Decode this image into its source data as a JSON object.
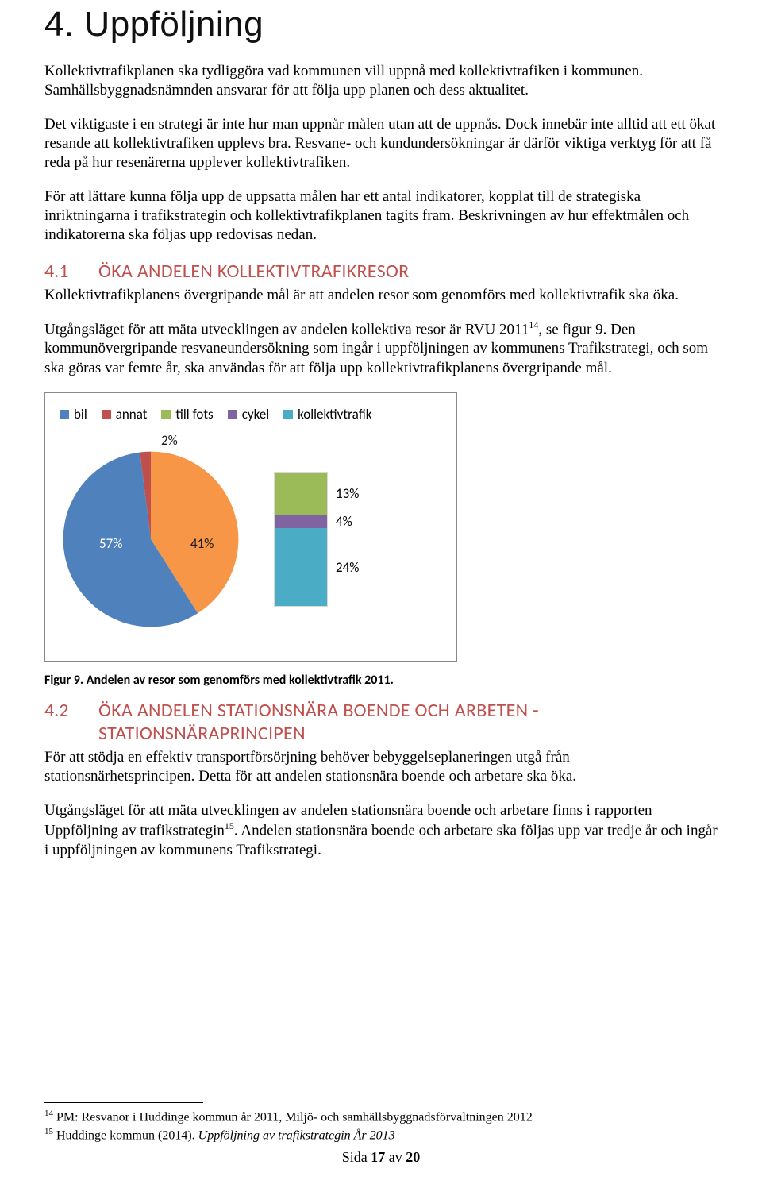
{
  "section": {
    "title": "4. Uppföljning",
    "para1": "Kollektivtrafikplanen ska tydliggöra vad kommunen vill uppnå med kollektivtrafiken i kommunen. Samhällsbyggnadsnämnden ansvarar för att följa upp planen och dess aktualitet.",
    "para2": "Det viktigaste i en strategi är inte hur man uppnår målen utan att de uppnås. Dock innebär inte alltid att ett ökat resande att kollektivtrafiken upplevs bra. Resvane- och kundundersökningar är därför viktiga verktyg för att få reda på hur resenärerna upplever kollektivtrafiken.",
    "para3": "För att lättare kunna följa upp de uppsatta målen har ett antal indikatorer, kopplat till de strategiska inriktningarna i trafikstrategin och kollektivtrafikplanen tagits fram. Beskrivningen av hur effektmålen och indikatorerna ska följas upp redovisas nedan."
  },
  "sub41": {
    "num": "4.1",
    "title": "ÖKA ANDELEN KOLLEKTIVTRAFIKRESOR",
    "p1": "Kollektivtrafikplanens övergripande mål är att andelen resor som genomförs med kollektivtrafik ska öka.",
    "p2a": "Utgångsläget för att mäta utvecklingen av andelen kollektiva resor är RVU 2011",
    "p2sup": "14",
    "p2b": ", se figur 9. Den kommunövergripande resvaneundersökning som ingår i uppföljningen av kommunens Trafikstrategi, och som ska göras var femte år, ska användas för att följa upp kollektivtrafikplanens övergripande mål."
  },
  "chart": {
    "type": "pie-with-breakout-stacked-bar",
    "legend": [
      {
        "label": "bil",
        "color": "#4f81bd"
      },
      {
        "label": "annat",
        "color": "#c0504d"
      },
      {
        "label": "till fots",
        "color": "#9bbb59"
      },
      {
        "label": "cykel",
        "color": "#8064a2"
      },
      {
        "label": "kollektivtrafik",
        "color": "#4bacc6"
      }
    ],
    "pie": {
      "slices": [
        {
          "label": "bil",
          "value": 57,
          "color": "#4f81bd"
        },
        {
          "label": "annat_group",
          "value": 41,
          "color": "#f79646"
        },
        {
          "label": "annat",
          "value": 2,
          "color": "#c0504d"
        }
      ],
      "bil_pct": "57%",
      "other_pct": "41%",
      "annat_pct": "2%"
    },
    "bar": {
      "segments": [
        {
          "label": "till fots",
          "value": 13,
          "color": "#9bbb59",
          "label_text": "13%"
        },
        {
          "label": "cykel",
          "value": 4,
          "color": "#8064a2",
          "label_text": "4%"
        },
        {
          "label": "kollektivtrafik",
          "value": 24,
          "color": "#4bacc6",
          "label_text": "24%"
        }
      ],
      "total": 41
    },
    "caption": "Figur 9. Andelen av resor som genomförs med kollektivtrafik 2011.",
    "frame_border_color": "#888888",
    "background_color": "#ffffff",
    "label_fontsize": 17
  },
  "sub42": {
    "num": "4.2",
    "title": "ÖKA ANDELEN STATIONSNÄRA BOENDE OCH ARBETEN - STATIONSNÄRAPRINCIPEN",
    "p1": "För att stödja en effektiv transportförsörjning behöver bebyggelseplaneringen utgå från stationsnärhetsprincipen. Detta för att andelen stationsnära boende och arbetare ska öka.",
    "p2a": "Utgångsläget för att mäta utvecklingen av andelen stationsnära boende och arbetare finns i rapporten Uppföljning av trafikstrategin",
    "p2sup": "15",
    "p2b": ". Andelen stationsnära boende och arbetare ska följas upp var tredje år och ingår i uppföljningen av kommunens Trafikstrategi."
  },
  "footnotes": {
    "fn14_sup": "14",
    "fn14": " PM: Resvanor i Huddinge kommun år 2011, Miljö- och samhällsbyggnadsförvaltningen 2012",
    "fn15_sup": "15",
    "fn15_a": " Huddinge kommun (2014). ",
    "fn15_i": "Uppföljning av trafikstrategin År 2013"
  },
  "pagefooter": {
    "a": "Sida ",
    "b": "17",
    "c": " av ",
    "d": "20"
  }
}
